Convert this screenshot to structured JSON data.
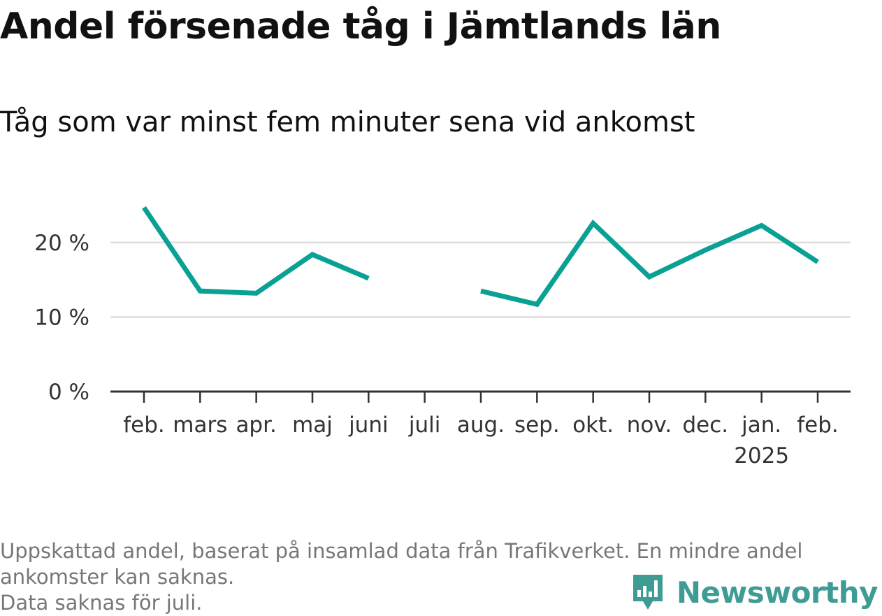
{
  "title": "Andel försenade tåg i Jämtlands län",
  "subtitle": "Tåg som var minst fem minuter sena vid ankomst",
  "footnote": {
    "line1": "Uppskattad andel, baserat på insamlad data från Trafikverket. En mindre andel",
    "line2": "ankomster kan saknas.",
    "line3": "Data saknas för juli."
  },
  "brand": {
    "name": "Newsworthy",
    "icon": "bar-chart-icon",
    "color": "#3f9c94"
  },
  "chart_data": {
    "type": "line",
    "categories": [
      "feb.",
      "mars",
      "apr.",
      "maj",
      "juni",
      "juli",
      "aug.",
      "sep.",
      "okt.",
      "nov.",
      "dec.",
      "jan.",
      "feb."
    ],
    "year_label": {
      "category_index": 11,
      "text": "2025"
    },
    "series": [
      {
        "values": [
          24.7,
          13.5,
          13.2,
          18.4,
          15.2,
          null,
          13.5,
          11.7,
          22.6,
          15.4,
          19.0,
          22.3,
          17.4
        ],
        "color": "#0aa195"
      }
    ],
    "ylim": [
      0,
      26
    ],
    "yticks": [
      {
        "value": 0,
        "label": "0 %"
      },
      {
        "value": 10,
        "label": "10 %"
      },
      {
        "value": 20,
        "label": "20 %"
      }
    ],
    "grid": true,
    "gridColor": "#dddddd",
    "axisColor": "#333333"
  }
}
